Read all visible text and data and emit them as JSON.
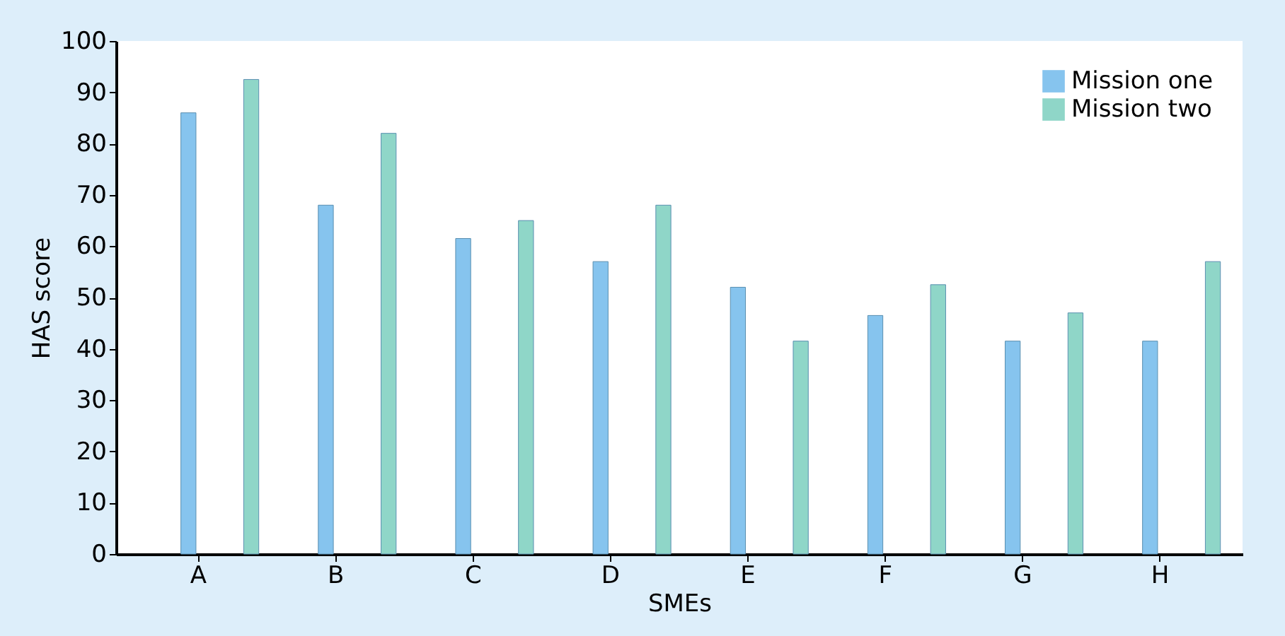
{
  "chart_data": {
    "type": "bar",
    "xlabel": "SMEs",
    "ylabel": "HAS score",
    "categories": [
      "A",
      "B",
      "C",
      "D",
      "E",
      "F",
      "G",
      "H"
    ],
    "series": [
      {
        "name": "Mission one",
        "color": "#86c4ee",
        "values": [
          86,
          68,
          61.5,
          57,
          52,
          46.5,
          41.5,
          41.5
        ]
      },
      {
        "name": "Mission two",
        "color": "#8fd6c8",
        "values": [
          92.5,
          82,
          65,
          68,
          41.5,
          52.5,
          47,
          57
        ]
      }
    ],
    "ylim": [
      0,
      100
    ],
    "yticks": [
      0,
      10,
      20,
      30,
      40,
      50,
      60,
      70,
      80,
      90,
      100
    ],
    "grid": false,
    "legend": "top right"
  }
}
